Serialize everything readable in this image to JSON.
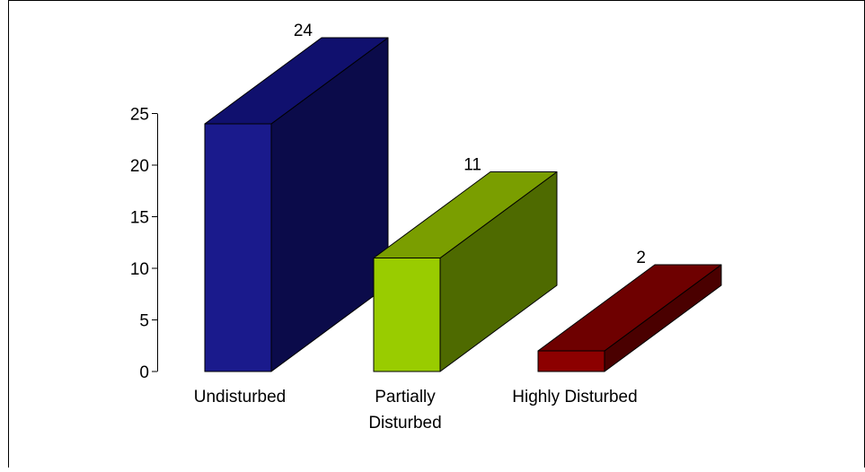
{
  "chart_data": {
    "type": "bar",
    "style": "3d",
    "title": "",
    "xlabel": "",
    "ylabel": "",
    "categories": [
      "Undisturbed",
      "Partially Disturbed",
      "Highly Disturbed"
    ],
    "category_lines": [
      [
        "Undisturbed"
      ],
      [
        "Partially",
        "Disturbed"
      ],
      [
        "Highly Disturbed"
      ]
    ],
    "values": [
      24,
      11,
      2
    ],
    "data_labels": [
      "24",
      "11",
      "2"
    ],
    "ylim": [
      0,
      25
    ],
    "yticks": [
      0,
      5,
      10,
      15,
      20,
      25
    ],
    "grid": false,
    "legend": "none",
    "colors": [
      {
        "front": "#1a1a8c",
        "side": "#0b0b4a",
        "top": "#10106e"
      },
      {
        "front": "#99cc00",
        "side": "#4e6a00",
        "top": "#7a9e00"
      },
      {
        "front": "#8c0000",
        "side": "#4a0000",
        "top": "#6e0000"
      }
    ]
  }
}
